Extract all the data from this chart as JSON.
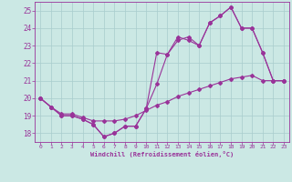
{
  "xlabel": "Windchill (Refroidissement éolien,°C)",
  "background_color": "#cbe8e4",
  "grid_color": "#a8cccc",
  "line_color": "#993399",
  "ylim": [
    17.5,
    25.5
  ],
  "xlim": [
    -0.5,
    23.5
  ],
  "yticks": [
    18,
    19,
    20,
    21,
    22,
    23,
    24,
    25
  ],
  "xticks": [
    0,
    1,
    2,
    3,
    4,
    5,
    6,
    7,
    8,
    9,
    10,
    11,
    12,
    13,
    14,
    15,
    16,
    17,
    18,
    19,
    20,
    21,
    22,
    23
  ],
  "line1_x": [
    0,
    1,
    2,
    3,
    4,
    5,
    6,
    7,
    8,
    9,
    10,
    11,
    12,
    13,
    14,
    15,
    16,
    17,
    18,
    19,
    20,
    21,
    22,
    23
  ],
  "line1_y": [
    20.0,
    19.5,
    19.0,
    19.0,
    18.8,
    18.5,
    17.8,
    18.0,
    18.4,
    18.4,
    19.4,
    20.8,
    22.5,
    23.5,
    23.3,
    23.0,
    24.3,
    24.7,
    25.2,
    24.0,
    24.0,
    22.6,
    21.0,
    21.0
  ],
  "line2_x": [
    0,
    1,
    2,
    3,
    4,
    5,
    6,
    7,
    8,
    9,
    10,
    11,
    12,
    13,
    14,
    15,
    16,
    17,
    18,
    19,
    20,
    21,
    22,
    23
  ],
  "line2_y": [
    20.0,
    19.5,
    19.1,
    19.1,
    18.9,
    18.7,
    18.7,
    18.7,
    18.8,
    19.0,
    19.3,
    19.6,
    19.8,
    20.1,
    20.3,
    20.5,
    20.7,
    20.9,
    21.1,
    21.2,
    21.3,
    21.0,
    21.0,
    21.0
  ],
  "line3_x": [
    0,
    1,
    2,
    3,
    4,
    5,
    6,
    7,
    8,
    9,
    10,
    11,
    12,
    13,
    14,
    15,
    16,
    17,
    18,
    19,
    20,
    21,
    22,
    23
  ],
  "line3_y": [
    20.0,
    19.5,
    19.0,
    19.0,
    18.8,
    18.5,
    17.8,
    18.0,
    18.4,
    18.4,
    19.4,
    22.6,
    22.5,
    23.3,
    23.5,
    23.0,
    24.3,
    24.7,
    25.2,
    24.0,
    24.0,
    22.6,
    21.0,
    21.0
  ]
}
